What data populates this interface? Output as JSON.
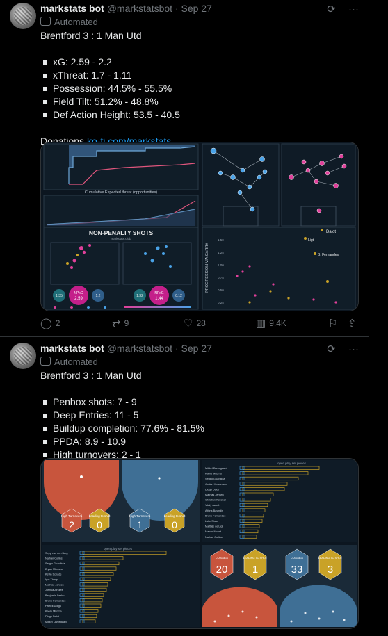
{
  "tweets": [
    {
      "name": "markstats bot",
      "handle": "@markstatsbot",
      "date": "· Sep 27",
      "automated": "Automated",
      "title": "Brentford 3 : 1 Man Utd",
      "stats": [
        "xG: 2.59 - 2.2",
        "xThreat: 1.7 - 1.11",
        "Possession: 44.5% - 55.5%",
        "Field Tilt: 51.2% - 48.8%",
        "Def Action Height: 53.5 - 40.5"
      ],
      "donations_label": "Donations ",
      "donations_link": "ko-fi.com/markstats",
      "media": {
        "xthreat_caption": "Cumulative Expected threat (opportunities)",
        "shots_title": "NON-PENALTY SHOTS",
        "shots_sub": "markstats.club",
        "shots_left": {
          "left_val": "1.35",
          "npxg": "2.59",
          "right_val": "1.2"
        },
        "shots_right": {
          "left_val": "1.32",
          "npxg": "1.44",
          "right_val": "0.12"
        },
        "npxg_label": "NPxG",
        "carry_ylabel": "PROGRESSION VIA CARRY",
        "carry_ticks": [
          "1.50",
          "1.25",
          "1.00",
          "0.75",
          "0.50",
          "0.25"
        ],
        "carry_players": [
          "Dalot",
          "Ligt",
          "B. Fernandes"
        ]
      },
      "actions": {
        "replies": "2",
        "reposts": "9",
        "likes": "28",
        "views": "9.4K"
      }
    },
    {
      "name": "markstats bot",
      "handle": "@markstatsbot",
      "date": "· Sep 27",
      "automated": "Automated",
      "title": "Brentford 3 : 1 Man Utd",
      "stats": [
        "Penbox shots: 7 - 9",
        "Deep Entries: 11 - 5",
        "Buildup completion: 77.6% - 81.5%",
        "PPDA: 8.9 - 10.9",
        "High turnovers: 2 - 1"
      ],
      "media": {
        "turnovers": [
          {
            "label": "High Turnovers",
            "value": "2",
            "color": "#c8553d"
          },
          {
            "label": "Leading to shot",
            "value": "0",
            "color": "#c9a227"
          },
          {
            "label": "High Turnovers",
            "value": "1",
            "color": "#3f6f95"
          },
          {
            "label": "Leading to shot",
            "value": "0",
            "color": "#c9a227"
          }
        ],
        "losses": [
          {
            "label": "LOSSES",
            "value": "20",
            "color": "#c8553d"
          },
          {
            "label": "LEADING TO SHOT",
            "value": "1",
            "color": "#c9a227"
          },
          {
            "label": "LOSSES",
            "value": "33",
            "color": "#3f6f95"
          },
          {
            "label": "LEADING TO SHOT",
            "value": "3",
            "color": "#c9a227"
          }
        ],
        "legend_left": "open play  set pieces",
        "legend_right": "open play  set pieces",
        "players_right": [
          "Mikkel Damsgaard",
          "Kaoru Mitoma",
          "Sergio Guardiola",
          "Jordan Henderson",
          "Diogo Dalot",
          "Mathias Jensen",
          "Christian Kelleher",
          "Vitaly Janelt",
          "Alfons Bayindir",
          "Bruno Fernandes",
          "Luke Shaw",
          "Matthijs de Ligt",
          "Mason Mount",
          "Nathan Collins"
        ],
        "players_left": [
          "Sepp van den Berg",
          "Nathan Collins",
          "Sergio Guardiola",
          "Bryan Mbeumo",
          "Kevin Schade",
          "Igor Thiago",
          "Mathias Jensen",
          "Joshua Zirkzee",
          "Benjamin Sesko",
          "Bruno Fernandes",
          "Patrick Dorgu",
          "Kaoru Mitoma",
          "Diogo Dalot",
          "Mikkel Damsgaard"
        ]
      }
    }
  ]
}
